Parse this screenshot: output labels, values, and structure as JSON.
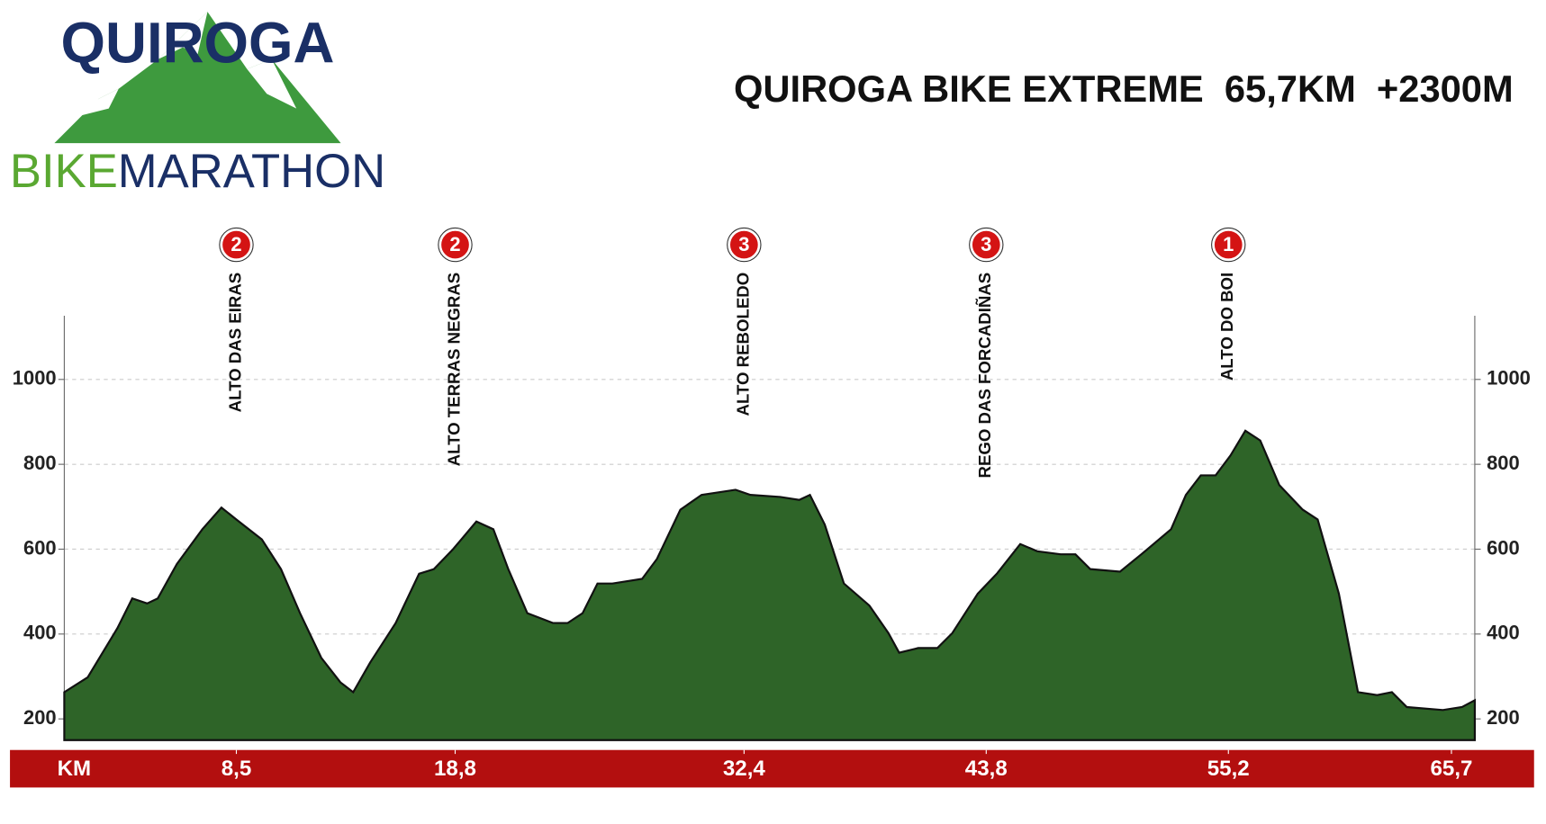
{
  "logo": {
    "name": "QUIROGA",
    "sub1": "BIKE",
    "sub2": "MARATHON"
  },
  "chart_data": {
    "type": "area",
    "title": "QUIROGA BIKE EXTREME  65,7KM  +2300M",
    "x_label": "KM",
    "color": "#2e6428",
    "grid": true,
    "xlim": [
      0.4,
      66.8
    ],
    "ylim": [
      150,
      1150
    ],
    "yticks": [
      200,
      400,
      600,
      800,
      1000
    ],
    "xticks": [
      {
        "value": 8.5,
        "label": "8,5"
      },
      {
        "value": 18.8,
        "label": "18,8"
      },
      {
        "value": 32.4,
        "label": "32,4"
      },
      {
        "value": 43.8,
        "label": "43,8"
      },
      {
        "value": 55.2,
        "label": "55,2"
      },
      {
        "value": 65.7,
        "label": "65,7"
      }
    ],
    "climbs": [
      {
        "name": "ALTO DAS EIRAS",
        "category": "2"
      },
      {
        "name": "ALTO TERRAS NEGRAS",
        "category": "2"
      },
      {
        "name": "ALTO REBOLEDO",
        "category": "3"
      },
      {
        "name": "REGO DAS FORCADIÑAS",
        "category": "3"
      },
      {
        "name": "ALTO DO BOI",
        "category": "1"
      }
    ],
    "x": [
      0.4,
      1.5,
      2.9,
      3.6,
      4.3,
      4.8,
      5.7,
      6.9,
      7.8,
      8.5,
      9.7,
      10.6,
      11.5,
      12.5,
      13.4,
      14.0,
      14.8,
      16.0,
      17.1,
      17.8,
      18.7,
      19.8,
      20.6,
      21.3,
      22.2,
      23.4,
      24.1,
      24.8,
      25.5,
      26.2,
      27.6,
      28.3,
      29.4,
      30.4,
      32.0,
      32.7,
      34.1,
      35.0,
      35.5,
      36.2,
      37.1,
      38.3,
      39.2,
      39.7,
      40.6,
      41.5,
      42.2,
      43.4,
      44.3,
      45.4,
      46.2,
      47.3,
      48.0,
      48.7,
      50.1,
      51.1,
      52.5,
      53.2,
      53.9,
      54.6,
      55.3,
      56.0,
      56.7,
      57.6,
      58.7,
      59.4,
      60.4,
      61.3,
      62.2,
      62.9,
      63.6,
      65.3,
      66.2,
      66.8
    ],
    "values": [
      263,
      298,
      414,
      484,
      472,
      484,
      565,
      647,
      698,
      670,
      623,
      553,
      449,
      344,
      286,
      263,
      333,
      426,
      542,
      553,
      600,
      665,
      647,
      553,
      449,
      426,
      426,
      449,
      519,
      519,
      530,
      577,
      693,
      728,
      740,
      728,
      723,
      716,
      728,
      658,
      519,
      467,
      402,
      356,
      367,
      367,
      402,
      495,
      542,
      612,
      595,
      588,
      588,
      553,
      547,
      588,
      647,
      728,
      774,
      774,
      821,
      879,
      856,
      751,
      693,
      670,
      495,
      263,
      256,
      263,
      228,
      221,
      228,
      244
    ]
  }
}
